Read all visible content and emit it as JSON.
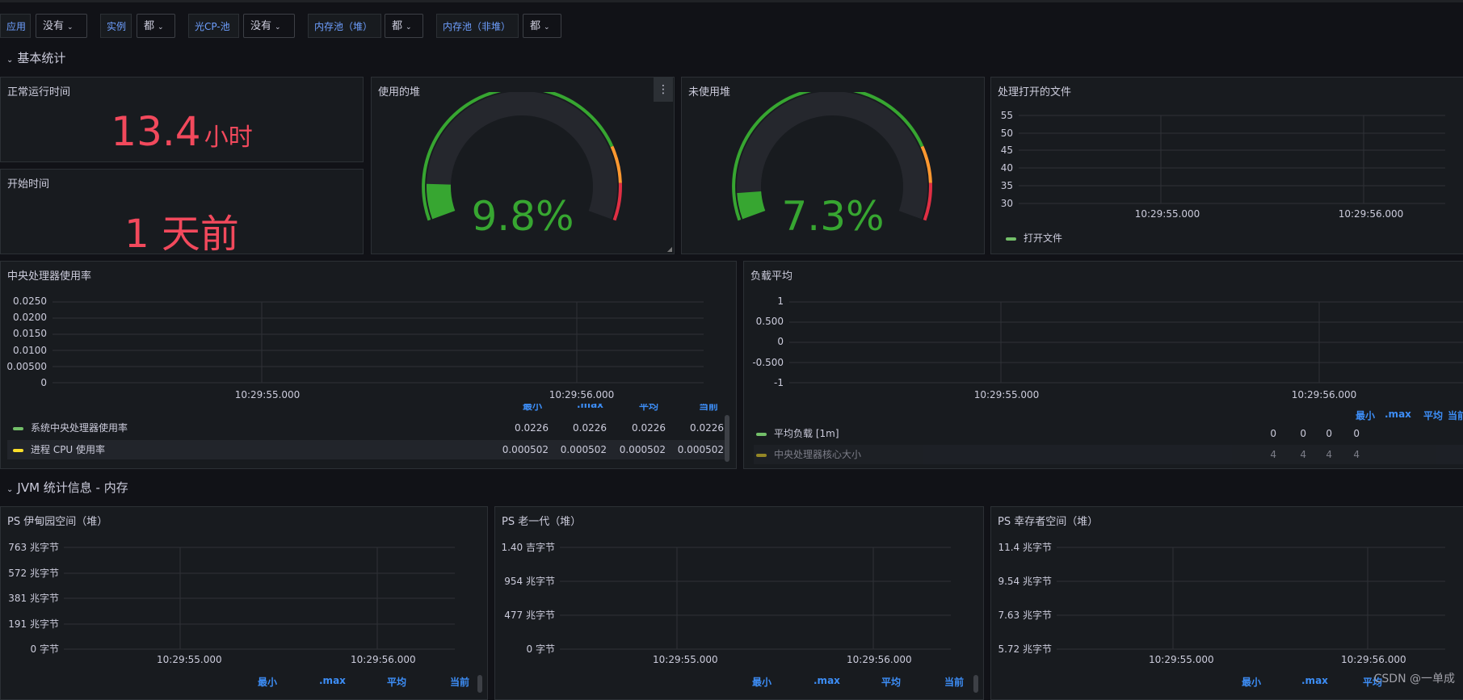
{
  "variables": [
    {
      "label": "应用",
      "value": "没有"
    },
    {
      "label": "实例",
      "value": "都"
    },
    {
      "label": "光CP-池",
      "value": "没有"
    },
    {
      "label": "内存池（堆）",
      "value": "都"
    },
    {
      "label": "内存池（非堆）",
      "value": "都"
    }
  ],
  "rows": {
    "basic": "基本统计",
    "jvm": "JVM 统计信息 - 内存"
  },
  "panels": {
    "uptime": {
      "title": "正常运行时间",
      "value": "13.4",
      "unit": "小时",
      "color": "#f2495c"
    },
    "start_time": {
      "title": "开始时间",
      "value": "1 天前",
      "color": "#f2495c"
    },
    "heap_used": {
      "title": "使用的堆",
      "value": "9.8%",
      "percent": 9.8,
      "color": "#37a631"
    },
    "non_heap_used": {
      "title": "未使用堆",
      "value": "7.3%",
      "percent": 7.3,
      "color": "#37a631"
    },
    "open_files": {
      "title": "处理打开的文件",
      "legend": "打开文件",
      "legend_color": "#73bf69",
      "yticks": [
        "55",
        "50",
        "45",
        "40",
        "35",
        "30"
      ],
      "xticks": [
        "10:29:55.000",
        "10:29:56.000"
      ]
    },
    "cpu": {
      "title": "中央处理器使用率",
      "yticks": [
        "0.0250",
        "0.0200",
        "0.0150",
        "0.0100",
        "0.00500",
        "0"
      ],
      "xticks": [
        "10:29:55.000",
        "10:29:56.000"
      ],
      "columns": [
        "最小",
        ".max",
        "平均",
        "当前"
      ],
      "series": [
        {
          "name": "系统中央处理器使用率",
          "color": "#73bf69",
          "values": [
            "0.0226",
            "0.0226",
            "0.0226",
            "0.0226"
          ]
        },
        {
          "name": "进程 CPU 使用率",
          "color": "#fade2a",
          "values": [
            "0.000502",
            "0.000502",
            "0.000502",
            "0.000502"
          ]
        }
      ]
    },
    "load": {
      "title": "负载平均",
      "yticks": [
        "1",
        "0.500",
        "0",
        "-0.500",
        "-1"
      ],
      "xticks": [
        "10:29:55.000",
        "10:29:56.000"
      ],
      "columns": [
        "最小",
        ".max",
        "平均",
        "当前"
      ],
      "series": [
        {
          "name": "平均负载 [1m]",
          "color": "#73bf69",
          "values": [
            "0",
            "0",
            "0",
            "0"
          ]
        },
        {
          "name": "中央处理器核心大小",
          "color": "#fade2a",
          "values": [
            "4",
            "4",
            "4",
            "4"
          ]
        }
      ]
    },
    "eden": {
      "title": "PS 伊甸园空间（堆）",
      "yticks": [
        "763 兆字节",
        "572 兆字节",
        "381 兆字节",
        "191 兆字节",
        "0 字节"
      ],
      "xticks": [
        "10:29:55.000",
        "10:29:56.000"
      ],
      "columns": [
        "最小",
        ".max",
        "平均",
        "当前"
      ]
    },
    "old": {
      "title": "PS 老一代（堆）",
      "yticks": [
        "1.40 吉字节",
        "954 兆字节",
        "477 兆字节",
        "0 字节"
      ],
      "xticks": [
        "10:29:55.000",
        "10:29:56.000"
      ],
      "columns": [
        "最小",
        ".max",
        "平均",
        "当前"
      ]
    },
    "survivor": {
      "title": "PS 幸存者空间（堆）",
      "yticks": [
        "11.4 兆字节",
        "9.54 兆字节",
        "7.63 兆字节",
        "5.72 兆字节"
      ],
      "xticks": [
        "10:29:55.000",
        "10:29:56.000"
      ],
      "columns": [
        "最小",
        ".max",
        "平均"
      ]
    }
  },
  "watermark": "CSDN @一单成",
  "colors": {
    "background": "#111217",
    "panel": "#181b1f",
    "border": "#2c3035",
    "accent": "#3d8ef7",
    "green": "#37a631",
    "orange": "#ff9830",
    "red": "#f2495c"
  }
}
